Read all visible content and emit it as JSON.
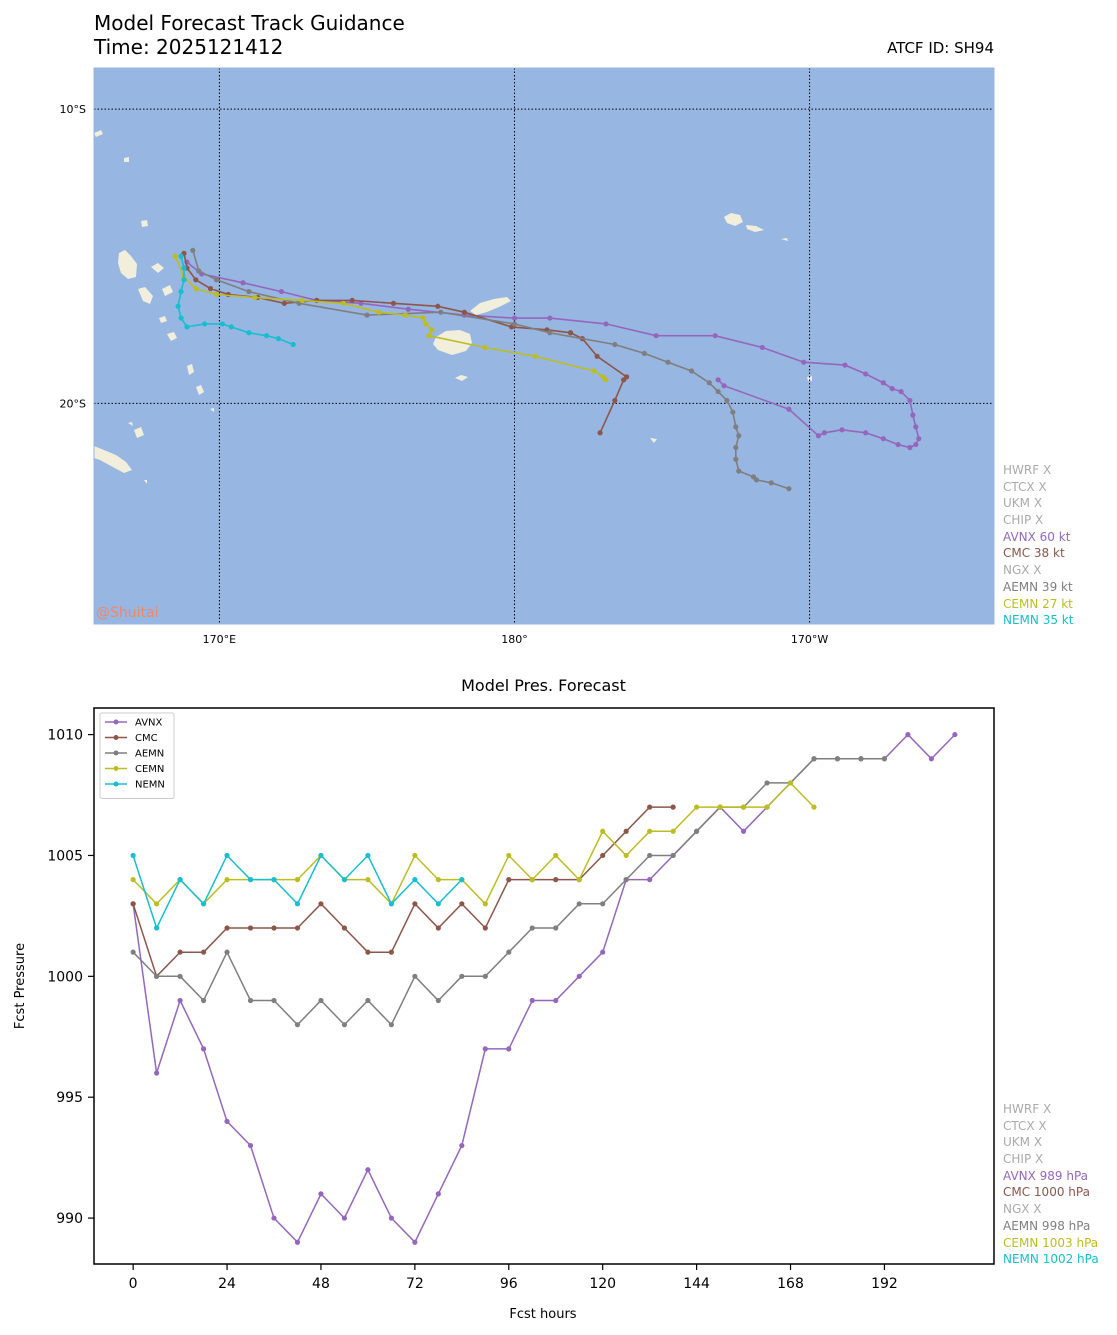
{
  "header": {
    "title": "Model Forecast Track Guidance",
    "time_label": "Time: 2025121412",
    "atcf_id": "ATCF ID: SH94"
  },
  "map": {
    "lat_labels": [
      "10°S",
      "20°S"
    ],
    "lon_labels": [
      "170°E",
      "180°",
      "170°W"
    ],
    "watermark": "@Shuitai",
    "colors": {
      "ocean": "#98b6e2",
      "land": "#f1efdb"
    }
  },
  "track_legend": [
    {
      "text": "HWRF X",
      "color": "#aaaaaa"
    },
    {
      "text": "CTCX X",
      "color": "#aaaaaa"
    },
    {
      "text": "UKM X",
      "color": "#aaaaaa"
    },
    {
      "text": "CHIP X",
      "color": "#aaaaaa"
    },
    {
      "text": "AVNX 60 kt",
      "color": "#9467bd"
    },
    {
      "text": "CMC 38 kt",
      "color": "#8c564b"
    },
    {
      "text": "NGX X",
      "color": "#aaaaaa"
    },
    {
      "text": "AEMN 39 kt",
      "color": "#7f7f7f"
    },
    {
      "text": "CEMN 27 kt",
      "color": "#bcbd22"
    },
    {
      "text": "NEMN 35 kt",
      "color": "#17becf"
    }
  ],
  "pres_legend": [
    {
      "text": "HWRF X",
      "color": "#aaaaaa"
    },
    {
      "text": "CTCX X",
      "color": "#aaaaaa"
    },
    {
      "text": "UKM X",
      "color": "#aaaaaa"
    },
    {
      "text": "CHIP X",
      "color": "#aaaaaa"
    },
    {
      "text": "AVNX 989 hPa",
      "color": "#9467bd"
    },
    {
      "text": "CMC 1000 hPa",
      "color": "#8c564b"
    },
    {
      "text": "NGX X",
      "color": "#aaaaaa"
    },
    {
      "text": "AEMN 998 hPa",
      "color": "#7f7f7f"
    },
    {
      "text": "CEMN 1003 hPa",
      "color": "#bcbd22"
    },
    {
      "text": "NEMN 1002 hPa",
      "color": "#17becf"
    }
  ],
  "chart_data": [
    {
      "type": "line",
      "title": "",
      "xlabel": "",
      "ylabel": "",
      "x_unit": "deg_east",
      "xlim": [
        165.75,
        196.25
      ],
      "ylim": [
        -27.5,
        -8.6
      ],
      "grid": true,
      "x_ticks": [
        170,
        180,
        190
      ],
      "y_ticks": [
        -10,
        -20
      ],
      "series": [
        {
          "name": "AVNX",
          "color": "#9467bd",
          "points": [
            [
              168.9,
              -15.2
            ],
            [
              169.4,
              -15.6
            ],
            [
              170.8,
              -15.9
            ],
            [
              172.1,
              -16.2
            ],
            [
              173.3,
              -16.5
            ],
            [
              174.8,
              -16.6
            ],
            [
              176.4,
              -16.8
            ],
            [
              178.3,
              -17.0
            ],
            [
              180.0,
              -17.1
            ],
            [
              181.2,
              -17.1
            ],
            [
              183.1,
              -17.3
            ],
            [
              184.8,
              -17.7
            ],
            [
              186.8,
              -17.7
            ],
            [
              188.4,
              -18.1
            ],
            [
              189.8,
              -18.6
            ],
            [
              191.2,
              -18.7
            ],
            [
              191.9,
              -19.0
            ],
            [
              192.5,
              -19.3
            ],
            [
              192.8,
              -19.5
            ],
            [
              193.1,
              -19.6
            ],
            [
              193.4,
              -19.9
            ],
            [
              193.5,
              -20.4
            ],
            [
              193.6,
              -20.8
            ],
            [
              193.7,
              -21.2
            ],
            [
              193.6,
              -21.4
            ],
            [
              193.4,
              -21.5
            ],
            [
              193.0,
              -21.4
            ],
            [
              192.5,
              -21.2
            ],
            [
              191.9,
              -21.0
            ],
            [
              191.1,
              -20.9
            ],
            [
              190.5,
              -21.0
            ],
            [
              190.3,
              -21.1
            ],
            [
              189.3,
              -20.2
            ],
            [
              187.1,
              -19.4
            ],
            [
              186.9,
              -19.2
            ]
          ]
        },
        {
          "name": "CMC",
          "color": "#8c564b",
          "points": [
            [
              168.8,
              -14.9
            ],
            [
              168.9,
              -15.4
            ],
            [
              169.2,
              -15.8
            ],
            [
              169.7,
              -16.1
            ],
            [
              170.3,
              -16.3
            ],
            [
              171.3,
              -16.4
            ],
            [
              172.2,
              -16.6
            ],
            [
              173.3,
              -16.5
            ],
            [
              174.5,
              -16.5
            ],
            [
              175.9,
              -16.6
            ],
            [
              177.4,
              -16.7
            ],
            [
              178.3,
              -16.9
            ],
            [
              179.9,
              -17.4
            ],
            [
              181.1,
              -17.5
            ],
            [
              181.9,
              -17.6
            ],
            [
              182.3,
              -17.8
            ],
            [
              182.8,
              -18.4
            ],
            [
              183.8,
              -19.1
            ],
            [
              183.7,
              -19.2
            ],
            [
              183.4,
              -19.9
            ],
            [
              182.9,
              -21.0
            ]
          ]
        },
        {
          "name": "AEMN",
          "color": "#7f7f7f",
          "points": [
            [
              169.1,
              -14.8
            ],
            [
              169.3,
              -15.5
            ],
            [
              169.9,
              -15.8
            ],
            [
              171.0,
              -16.2
            ],
            [
              172.7,
              -16.6
            ],
            [
              175.0,
              -17.0
            ],
            [
              177.5,
              -16.9
            ],
            [
              180.0,
              -17.3
            ],
            [
              181.2,
              -17.6
            ],
            [
              183.4,
              -18.0
            ],
            [
              184.4,
              -18.3
            ],
            [
              185.2,
              -18.6
            ],
            [
              186.0,
              -18.9
            ],
            [
              186.6,
              -19.3
            ],
            [
              186.9,
              -19.6
            ],
            [
              187.2,
              -19.9
            ],
            [
              187.4,
              -20.3
            ],
            [
              187.5,
              -20.8
            ],
            [
              187.6,
              -21.1
            ],
            [
              187.5,
              -21.5
            ],
            [
              187.5,
              -21.9
            ],
            [
              187.6,
              -22.3
            ],
            [
              188.1,
              -22.5
            ],
            [
              188.2,
              -22.6
            ],
            [
              188.7,
              -22.7
            ],
            [
              189.3,
              -22.9
            ]
          ]
        },
        {
          "name": "CEMN",
          "color": "#bcbd22",
          "points": [
            [
              168.5,
              -15.0
            ],
            [
              168.8,
              -15.7
            ],
            [
              169.2,
              -16.1
            ],
            [
              169.9,
              -16.3
            ],
            [
              171.2,
              -16.4
            ],
            [
              172.8,
              -16.5
            ],
            [
              174.2,
              -16.6
            ],
            [
              175.4,
              -16.9
            ],
            [
              176.3,
              -17.0
            ],
            [
              176.9,
              -17.1
            ],
            [
              177.0,
              -17.3
            ],
            [
              177.2,
              -17.5
            ],
            [
              177.1,
              -17.7
            ],
            [
              179.0,
              -18.1
            ],
            [
              180.7,
              -18.4
            ],
            [
              182.7,
              -18.9
            ],
            [
              183.0,
              -19.1
            ],
            [
              183.1,
              -19.2
            ]
          ]
        },
        {
          "name": "NEMN",
          "color": "#17becf",
          "points": [
            [
              168.7,
              -15.0
            ],
            [
              168.8,
              -15.4
            ],
            [
              168.8,
              -15.8
            ],
            [
              168.7,
              -16.2
            ],
            [
              168.6,
              -16.7
            ],
            [
              168.7,
              -17.1
            ],
            [
              168.9,
              -17.4
            ],
            [
              169.5,
              -17.3
            ],
            [
              170.1,
              -17.3
            ],
            [
              170.4,
              -17.4
            ],
            [
              171.0,
              -17.6
            ],
            [
              171.6,
              -17.7
            ],
            [
              172.0,
              -17.8
            ],
            [
              172.5,
              -18.0
            ]
          ]
        }
      ]
    },
    {
      "type": "line",
      "title": "Model Pres. Forecast",
      "xlabel": "Fcst hours",
      "ylabel": "Fcst Pressure",
      "xlim": [
        -10,
        220
      ],
      "ylim": [
        988.1,
        1011.1
      ],
      "x_ticks": [
        0,
        24,
        48,
        72,
        96,
        120,
        144,
        168,
        192
      ],
      "y_ticks": [
        990,
        995,
        1000,
        1005,
        1010
      ],
      "grid": false,
      "legend": "upper-left",
      "x": [
        0,
        6,
        12,
        18,
        24,
        30,
        36,
        42,
        48,
        54,
        60,
        66,
        72,
        78,
        84,
        90,
        96,
        102,
        108,
        114,
        120,
        126,
        132,
        138,
        144,
        150,
        156,
        162,
        168,
        174,
        180,
        186,
        192,
        198,
        204,
        210
      ],
      "series": [
        {
          "name": "AVNX",
          "color": "#9467bd",
          "values": [
            1003,
            996,
            999,
            997,
            994,
            993,
            990,
            989,
            991,
            990,
            992,
            990,
            989,
            991,
            993,
            997,
            997,
            999,
            999,
            1000,
            1001,
            1004,
            1004,
            1005,
            1006,
            1007,
            1006,
            1007,
            1008,
            1009,
            1009,
            1009,
            1009,
            1010,
            1009,
            1010
          ]
        },
        {
          "name": "CMC",
          "color": "#8c564b",
          "values": [
            1003,
            1000,
            1001,
            1001,
            1002,
            1002,
            1002,
            1002,
            1003,
            1002,
            1001,
            1001,
            1003,
            1002,
            1003,
            1002,
            1004,
            1004,
            1004,
            1004,
            1005,
            1006,
            1007,
            1007,
            null,
            null,
            null,
            null,
            null,
            null,
            null,
            null,
            null,
            null,
            null,
            null
          ]
        },
        {
          "name": "AEMN",
          "color": "#7f7f7f",
          "values": [
            1001,
            1000,
            1000,
            999,
            1001,
            999,
            999,
            998,
            999,
            998,
            999,
            998,
            1000,
            999,
            1000,
            1000,
            1001,
            1002,
            1002,
            1003,
            1003,
            1004,
            1005,
            1005,
            1006,
            1007,
            1007,
            1008,
            1008,
            1009,
            1009,
            1009,
            1009,
            null,
            null,
            null
          ]
        },
        {
          "name": "CEMN",
          "color": "#bcbd22",
          "values": [
            1004,
            1003,
            1004,
            1003,
            1004,
            1004,
            1004,
            1004,
            1005,
            1004,
            1004,
            1003,
            1005,
            1004,
            1004,
            1003,
            1005,
            1004,
            1005,
            1004,
            1006,
            1005,
            1006,
            1006,
            1007,
            1007,
            1007,
            1007,
            1008,
            1007,
            null,
            null,
            null,
            null,
            null,
            null
          ]
        },
        {
          "name": "NEMN",
          "color": "#17becf",
          "values": [
            1005,
            1002,
            1004,
            1003,
            1005,
            1004,
            1004,
            1003,
            1005,
            1004,
            1005,
            1003,
            1004,
            1003,
            1004,
            null,
            null,
            null,
            null,
            null,
            null,
            null,
            null,
            null,
            null,
            null,
            null,
            null,
            null,
            null,
            null,
            null,
            null,
            null,
            null,
            null
          ]
        }
      ]
    }
  ]
}
